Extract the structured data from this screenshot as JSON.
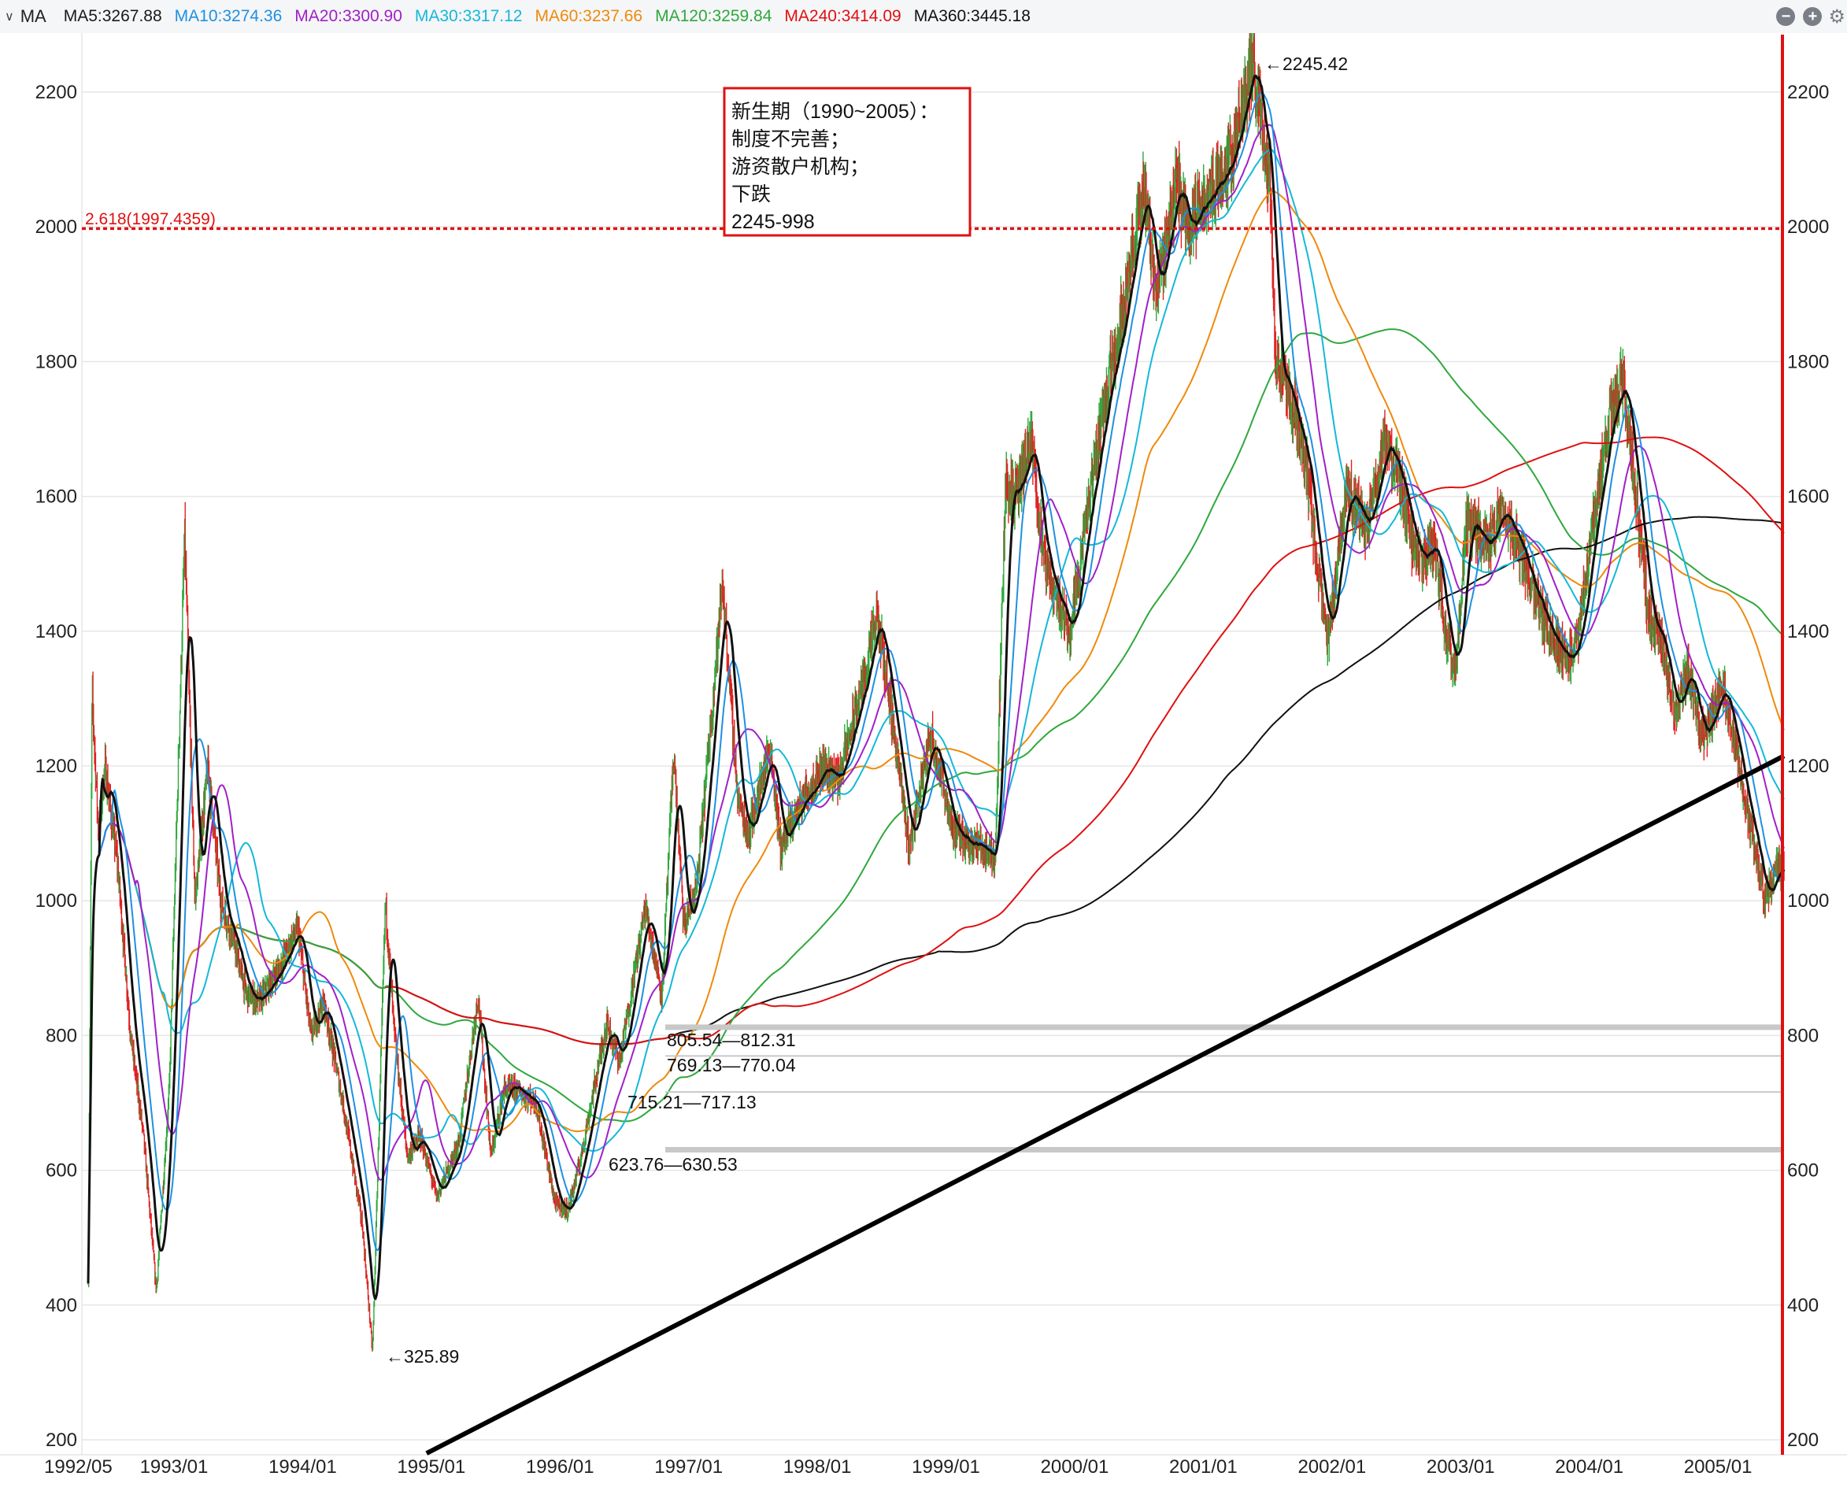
{
  "header": {
    "indicator": "MA",
    "ma_items": [
      {
        "label": "MA5:3267.88",
        "color": "#1a1a1a"
      },
      {
        "label": "MA10:3274.36",
        "color": "#1e90e0"
      },
      {
        "label": "MA20:3300.90",
        "color": "#a020c8"
      },
      {
        "label": "MA30:3317.12",
        "color": "#14b8d8"
      },
      {
        "label": "MA60:3237.66",
        "color": "#ee8a0c"
      },
      {
        "label": "MA120:3259.84",
        "color": "#2ea83c"
      },
      {
        "label": "MA240:3414.09",
        "color": "#e01010"
      },
      {
        "label": "MA360:3445.18",
        "color": "#111111"
      }
    ],
    "controls": {
      "minus_icon": "minus-circle-icon",
      "plus_icon": "plus-circle-icon",
      "settings_icon": "gear-icon"
    }
  },
  "colors": {
    "grid": "#e6e6e6",
    "up": "#2ea83c",
    "down": "#e02020",
    "price": "#111111",
    "fib": "#e01010",
    "box": "#e01010",
    "trend": "#000000",
    "support": "#c8c8c8",
    "right_axis": "#e01010"
  },
  "chart_data": {
    "type": "candlestick",
    "y_range": [
      180,
      2290
    ],
    "y_ticks": [
      200,
      400,
      600,
      800,
      1000,
      1200,
      1400,
      1600,
      1800,
      2000,
      2200
    ],
    "x_ticks": [
      "1992/05",
      "1993/01",
      "1994/01",
      "1995/01",
      "1996/01",
      "1997/01",
      "1998/01",
      "1999/01",
      "2000/01",
      "2001/01",
      "2002/01",
      "2003/01",
      "2004/01",
      "2005/01"
    ],
    "price_path": [
      [
        1992.37,
        440
      ],
      [
        1992.4,
        1310
      ],
      [
        1992.45,
        1100
      ],
      [
        1992.5,
        1200
      ],
      [
        1992.6,
        1050
      ],
      [
        1992.7,
        800
      ],
      [
        1992.8,
        650
      ],
      [
        1992.9,
        420
      ],
      [
        1993.0,
        720
      ],
      [
        1993.12,
        1540
      ],
      [
        1993.2,
        1000
      ],
      [
        1993.3,
        1200
      ],
      [
        1993.4,
        1000
      ],
      [
        1993.5,
        940
      ],
      [
        1993.6,
        860
      ],
      [
        1993.7,
        850
      ],
      [
        1993.85,
        900
      ],
      [
        1994.0,
        960
      ],
      [
        1994.1,
        800
      ],
      [
        1994.2,
        850
      ],
      [
        1994.35,
        700
      ],
      [
        1994.5,
        520
      ],
      [
        1994.58,
        330
      ],
      [
        1994.68,
        1000
      ],
      [
        1994.75,
        800
      ],
      [
        1994.85,
        620
      ],
      [
        1994.95,
        650
      ],
      [
        1995.08,
        560
      ],
      [
        1995.25,
        640
      ],
      [
        1995.4,
        860
      ],
      [
        1995.5,
        620
      ],
      [
        1995.6,
        720
      ],
      [
        1995.7,
        720
      ],
      [
        1995.85,
        700
      ],
      [
        1996.0,
        550
      ],
      [
        1996.1,
        540
      ],
      [
        1996.2,
        620
      ],
      [
        1996.4,
        820
      ],
      [
        1996.5,
        760
      ],
      [
        1996.7,
        990
      ],
      [
        1996.83,
        860
      ],
      [
        1996.92,
        1220
      ],
      [
        1997.0,
        960
      ],
      [
        1997.1,
        1020
      ],
      [
        1997.3,
        1470
      ],
      [
        1997.42,
        1150
      ],
      [
        1997.5,
        1100
      ],
      [
        1997.67,
        1230
      ],
      [
        1997.75,
        1080
      ],
      [
        1997.92,
        1150
      ],
      [
        1998.08,
        1200
      ],
      [
        1998.2,
        1180
      ],
      [
        1998.4,
        1330
      ],
      [
        1998.5,
        1420
      ],
      [
        1998.6,
        1300
      ],
      [
        1998.75,
        1080
      ],
      [
        1998.92,
        1250
      ],
      [
        1999.1,
        1100
      ],
      [
        1999.3,
        1080
      ],
      [
        1999.42,
        1065
      ],
      [
        1999.5,
        1620
      ],
      [
        1999.58,
        1600
      ],
      [
        1999.7,
        1680
      ],
      [
        1999.8,
        1500
      ],
      [
        1999.92,
        1440
      ],
      [
        2000.0,
        1400
      ],
      [
        2000.1,
        1530
      ],
      [
        2000.25,
        1720
      ],
      [
        2000.4,
        1870
      ],
      [
        2000.58,
        2060
      ],
      [
        2000.67,
        1900
      ],
      [
        2000.83,
        2070
      ],
      [
        2000.92,
        2000
      ],
      [
        2001.08,
        2050
      ],
      [
        2001.25,
        2100
      ],
      [
        2001.42,
        2245
      ],
      [
        2001.55,
        2080
      ],
      [
        2001.6,
        1800
      ],
      [
        2001.75,
        1720
      ],
      [
        2001.85,
        1630
      ],
      [
        2001.92,
        1500
      ],
      [
        2002.0,
        1380
      ],
      [
        2002.15,
        1620
      ],
      [
        2002.3,
        1550
      ],
      [
        2002.45,
        1680
      ],
      [
        2002.55,
        1630
      ],
      [
        2002.7,
        1500
      ],
      [
        2002.83,
        1530
      ],
      [
        2002.92,
        1400
      ],
      [
        2003.0,
        1340
      ],
      [
        2003.08,
        1560
      ],
      [
        2003.25,
        1530
      ],
      [
        2003.35,
        1580
      ],
      [
        2003.5,
        1520
      ],
      [
        2003.7,
        1410
      ],
      [
        2003.83,
        1370
      ],
      [
        2003.92,
        1360
      ],
      [
        2004.1,
        1600
      ],
      [
        2004.2,
        1720
      ],
      [
        2004.3,
        1770
      ],
      [
        2004.4,
        1600
      ],
      [
        2004.5,
        1420
      ],
      [
        2004.6,
        1380
      ],
      [
        2004.7,
        1280
      ],
      [
        2004.8,
        1340
      ],
      [
        2004.92,
        1240
      ],
      [
        2005.0,
        1280
      ],
      [
        2005.08,
        1320
      ],
      [
        2005.2,
        1200
      ],
      [
        2005.3,
        1100
      ],
      [
        2005.4,
        1000
      ],
      [
        2005.5,
        1050
      ]
    ],
    "fib": {
      "label": "2.618(1997.4359)",
      "value": 1997.4359
    },
    "annotation_box": [
      "新生期（1990~2005）：",
      "制度不完善；",
      "游资散户机构；",
      "下跌",
      "2245-998"
    ],
    "peak": {
      "label": "←2245.42",
      "value": 2245.42
    },
    "trough": {
      "label": "←325.89",
      "value": 325.89
    },
    "support_levels": [
      {
        "label": "805.54—812.31",
        "low": 805.54,
        "high": 812.31
      },
      {
        "label": "769.13—770.04",
        "low": 769.13,
        "high": 770.04
      },
      {
        "label": "715.21—717.13",
        "low": 715.21,
        "high": 717.13
      },
      {
        "label": "623.76—630.53",
        "low": 623.76,
        "high": 630.53
      }
    ],
    "trendline": [
      [
        1995.0,
        180
      ],
      [
        2005.55,
        1215
      ]
    ]
  }
}
